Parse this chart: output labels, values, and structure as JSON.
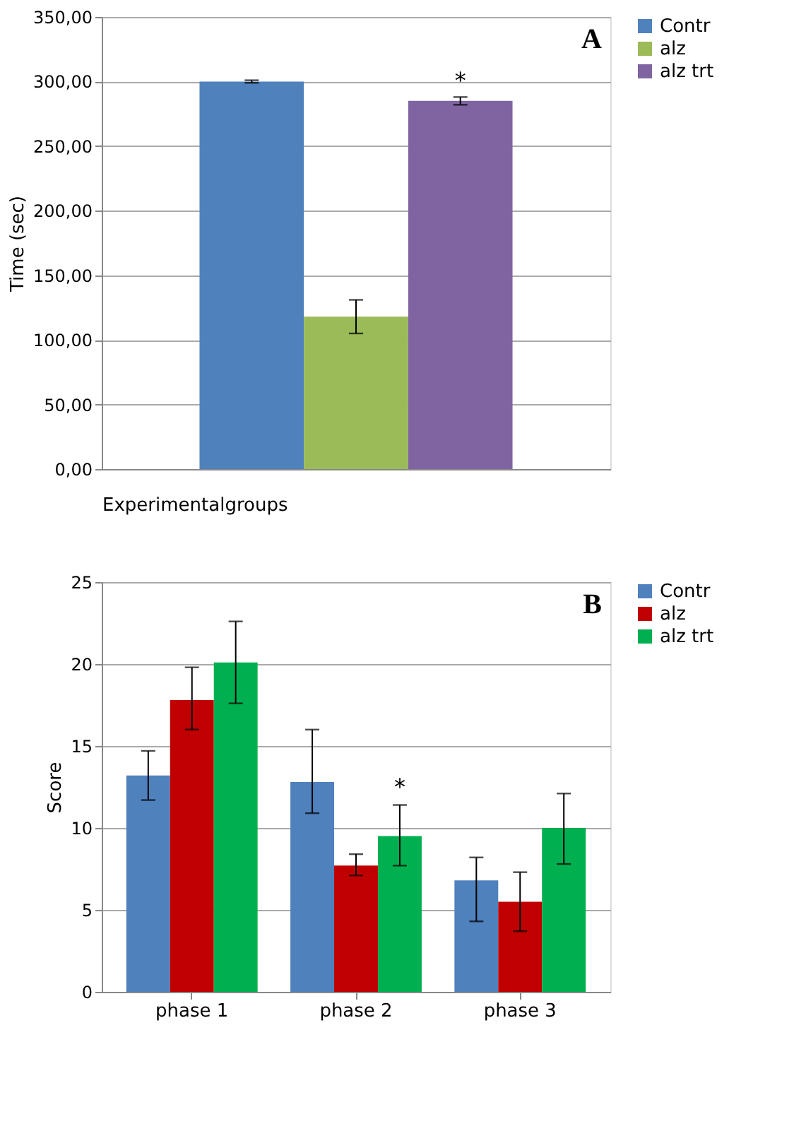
{
  "chart_data": [
    {
      "type": "bar",
      "categories": [
        null
      ],
      "xlabel": "Experimentalgroups",
      "ylabel": "Time (sec)",
      "series": [
        {
          "name": "Contr",
          "color": "#4f81bd",
          "values": [
            300
          ],
          "errors": [
            1
          ]
        },
        {
          "name": "alz",
          "color": "#9bbb59",
          "values": [
            118
          ],
          "errors": [
            [
              105,
              131
            ]
          ]
        },
        {
          "name": "alz trt",
          "color": "#8064a2",
          "values": [
            285
          ],
          "errors": [
            [
              282,
              288
            ]
          ]
        }
      ],
      "ylim": [
        0,
        350
      ],
      "yticks": [
        {
          "value": 0,
          "label": "0,00"
        },
        {
          "value": 50,
          "label": "50,00"
        },
        {
          "value": 100,
          "label": "100,00"
        },
        {
          "value": 150,
          "label": "150,00"
        },
        {
          "value": 200,
          "label": "200,00"
        },
        {
          "value": 250,
          "label": "250,00"
        },
        {
          "value": 300,
          "label": "300,00"
        },
        {
          "value": 350,
          "label": "350,00"
        }
      ],
      "grid": "y",
      "legend": "right",
      "annotations": [
        "A",
        {
          "text": "*",
          "y": 288
        }
      ]
    },
    {
      "type": "bar",
      "categories": [
        "phase 1",
        "phase 2",
        "phase 3"
      ],
      "ylabel": "Score",
      "series": [
        {
          "name": "Contr",
          "color": "#4f81bd",
          "values": [
            13.2,
            12.8,
            6.8
          ],
          "errors": [
            [
              11.7,
              14.7
            ],
            [
              10.9,
              16.0
            ],
            [
              4.3,
              8.2
            ]
          ]
        },
        {
          "name": "alz",
          "color": "#c00000",
          "values": [
            17.8,
            7.7,
            5.5
          ],
          "errors": [
            [
              16.0,
              19.8
            ],
            [
              7.1,
              8.4
            ],
            [
              3.7,
              7.3
            ]
          ]
        },
        {
          "name": "alz trt",
          "color": "#00b050",
          "values": [
            20.1,
            9.5,
            10.0
          ],
          "errors": [
            [
              17.6,
              22.6
            ],
            [
              7.7,
              11.4
            ],
            [
              7.8,
              12.1
            ]
          ]
        }
      ],
      "ylim": [
        0,
        25
      ],
      "yticks": [
        0,
        5,
        10,
        15,
        20,
        25
      ],
      "grid": "y",
      "legend": "right",
      "annotations": [
        "B",
        "*"
      ]
    }
  ]
}
